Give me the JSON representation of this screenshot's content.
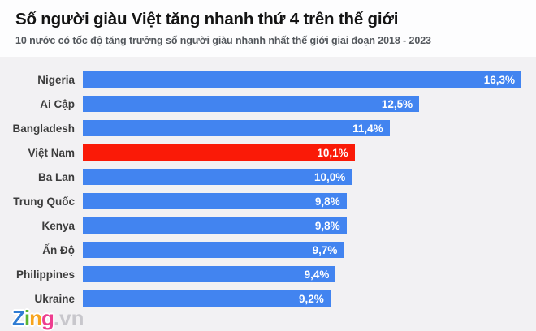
{
  "header": {
    "title": "Số người giàu Việt tăng nhanh thứ 4 trên thế giới",
    "subtitle": "10 nước có tốc độ tăng trưởng số người giàu nhanh nhất thế giới giai đoạn 2018 - 2023"
  },
  "chart_data": {
    "type": "bar",
    "orientation": "horizontal",
    "title": "Số người giàu Việt tăng nhanh thứ 4 trên thế giới",
    "subtitle": "10 nước có tốc độ tăng trưởng số người giàu nhanh nhất thế giới giai đoạn 2018 - 2023",
    "categories": [
      "Nigeria",
      "Ai Cập",
      "Bangladesh",
      "Việt Nam",
      "Ba Lan",
      "Trung Quốc",
      "Kenya",
      "Ấn Độ",
      "Philippines",
      "Ukraine"
    ],
    "values": [
      16.3,
      12.5,
      11.4,
      10.1,
      10.0,
      9.8,
      9.8,
      9.7,
      9.4,
      9.2
    ],
    "value_labels": [
      "16,3%",
      "12,5%",
      "11,4%",
      "10,1%",
      "10,0%",
      "9,8%",
      "9,8%",
      "9,7%",
      "9,4%",
      "9,2%"
    ],
    "unit": "%",
    "xlim": [
      0,
      16.3
    ],
    "grid": false,
    "legend": false,
    "bar_color": "#4284f0",
    "highlight_category": "Việt Nam",
    "highlight_color": "#fa1a07",
    "value_label_position": "inside-end"
  },
  "colors": {
    "header_bg": "#fdfdfe",
    "chart_bg": "#f2f1f3",
    "title_text": "#141414",
    "subtitle_text": "#54585d",
    "category_text": "#3c3c3c",
    "value_text": "#ffffff"
  },
  "logo": {
    "letters": [
      {
        "char": "Z",
        "color": "#2f7cd3"
      },
      {
        "char": "i",
        "color": "#5cb531"
      },
      {
        "char": "n",
        "color": "#f7a41d"
      },
      {
        "char": "g",
        "color": "#ee3d8f"
      }
    ],
    "suffix": ".vn"
  }
}
